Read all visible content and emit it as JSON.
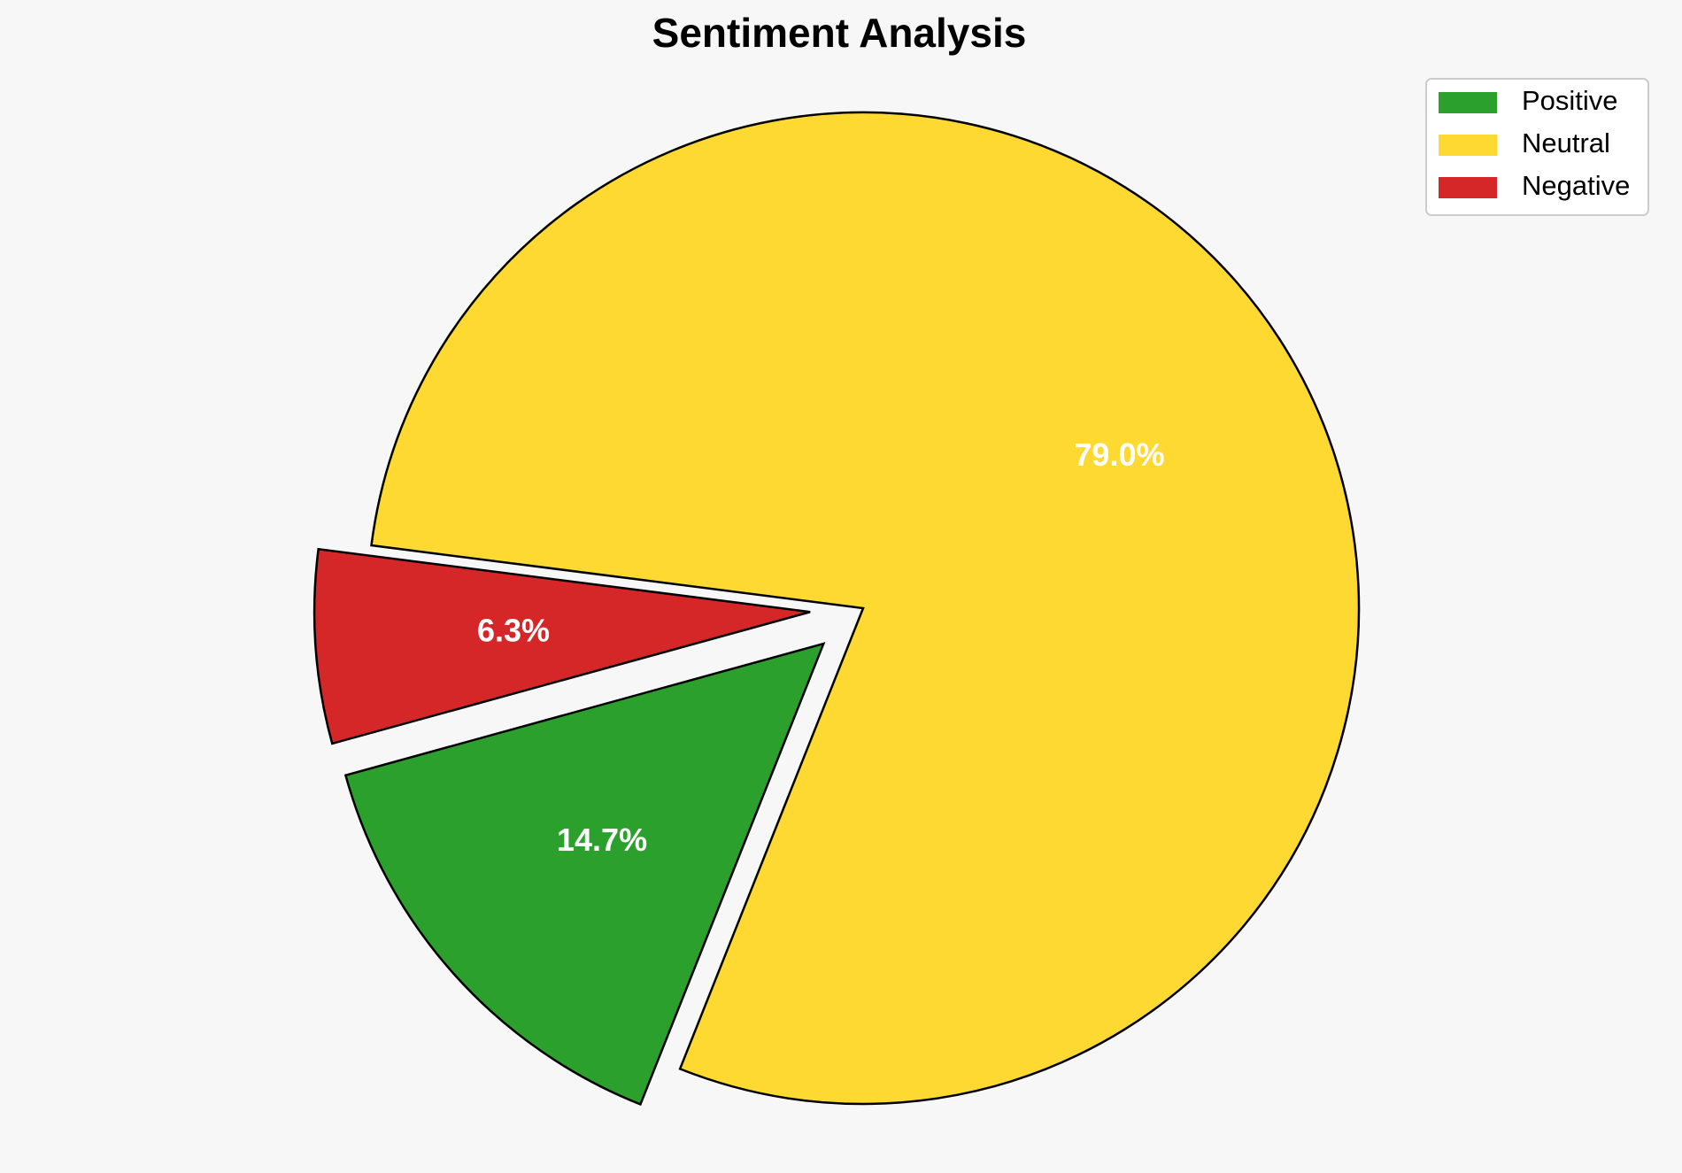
{
  "chart_data": {
    "type": "pie",
    "title": "Sentiment Analysis",
    "slices": [
      {
        "label": "Positive",
        "value": 14.7,
        "pct_label": "14.7%",
        "color": "#2ca02c",
        "exploded": true
      },
      {
        "label": "Neutral",
        "value": 79.0,
        "pct_label": "79.0%",
        "color": "#fdd931",
        "exploded": false
      },
      {
        "label": "Negative",
        "value": 6.3,
        "pct_label": "6.3%",
        "color": "#d62728",
        "exploded": true
      }
    ],
    "legend_position": "top-right"
  }
}
